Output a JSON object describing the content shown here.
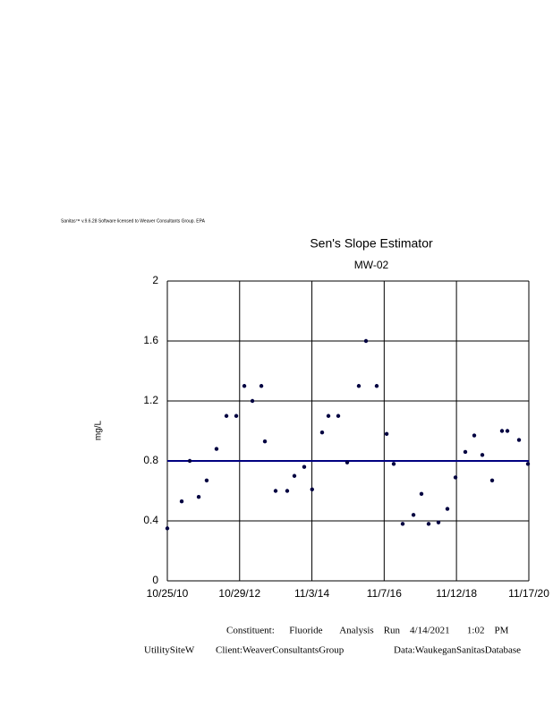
{
  "header": {
    "software": "Sanitas™ v.9.6.28 Software licensed to Weaver Consultants Group. EPA"
  },
  "chart_data": {
    "type": "scatter",
    "title": "Sen's Slope Estimator",
    "subtitle": "MW-02",
    "y_label": "mg/L",
    "x": [
      "2010-10-25",
      "2011-03-20",
      "2011-06-10",
      "2011-09-09",
      "2011-11-29",
      "2012-03-08",
      "2012-06-17",
      "2012-09-25",
      "2012-12-16",
      "2013-03-08",
      "2013-06-07",
      "2013-07-13",
      "2013-10-30",
      "2014-02-25",
      "2014-05-09",
      "2014-08-17",
      "2014-11-05",
      "2015-02-15",
      "2015-04-20",
      "2015-07-29",
      "2015-10-28",
      "2016-02-23",
      "2016-05-06",
      "2016-08-23",
      "2016-12-02",
      "2017-02-12",
      "2017-05-14",
      "2017-09-01",
      "2017-11-21",
      "2018-02-02",
      "2018-05-13",
      "2018-08-12",
      "2018-11-02",
      "2019-02-10",
      "2019-05-12",
      "2019-08-02",
      "2019-11-10",
      "2020-02-18",
      "2020-04-13",
      "2020-08-09",
      "2020-11-08"
    ],
    "values": [
      0.35,
      0.53,
      0.8,
      0.56,
      0.67,
      0.88,
      1.1,
      1.1,
      1.3,
      1.2,
      1.3,
      0.93,
      0.6,
      0.6,
      0.7,
      0.76,
      0.61,
      0.99,
      1.1,
      1.1,
      0.79,
      1.3,
      1.6,
      1.3,
      0.98,
      0.78,
      0.38,
      0.44,
      0.58,
      0.38,
      0.39,
      0.48,
      0.69,
      0.86,
      0.97,
      0.84,
      0.67,
      1.0,
      1.0,
      0.94,
      0.78
    ],
    "color": "#000040",
    "trend_line": {
      "x": [
        "2010-10-25",
        "2020-11-17"
      ],
      "values": [
        0.8,
        0.8
      ],
      "color": "#000080"
    },
    "xlim": [
      "2010-10-25",
      "2020-11-17"
    ],
    "xticks": [
      {
        "value": "2010-10-25",
        "label": "10/25/10"
      },
      {
        "value": "2012-10-29",
        "label": "10/29/12"
      },
      {
        "value": "2014-11-03",
        "label": "11/3/14"
      },
      {
        "value": "2016-11-07",
        "label": "11/7/16"
      },
      {
        "value": "2018-11-12",
        "label": "11/12/18"
      },
      {
        "value": "2020-11-17",
        "label": "11/17/20"
      }
    ],
    "ylim": [
      0,
      2
    ],
    "yticks": [
      0,
      0.4,
      0.8,
      1.2,
      1.6,
      2
    ],
    "grid": true
  },
  "footer": {
    "line1": "Constituent:      Fluoride       Analysis    Run    4/14/2021       1:02    PM",
    "site": "UtilitySiteW",
    "client": "Client:WeaverConsultantsGroup",
    "database": "Data:WaukeganSanitasDatabase"
  }
}
